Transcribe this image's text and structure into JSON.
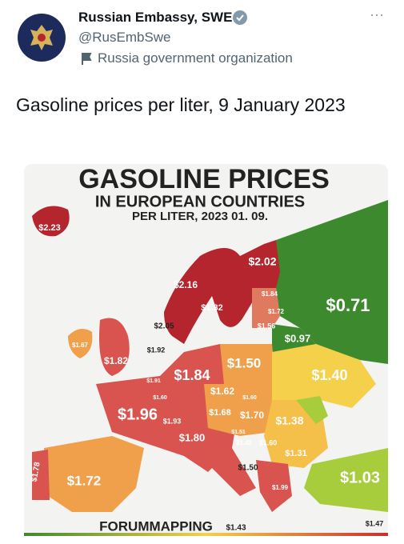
{
  "tweet": {
    "name": "Russian Embassy, SWE",
    "handle": "@RusEmbSwe",
    "label": "Russia government organization",
    "more": "···",
    "text": "Gasoline prices per liter, 9 January 2023"
  },
  "map": {
    "title": "GASOLINE PRICES",
    "subtitle": "IN EUROPEAN COUNTRIES",
    "date": "PER LITER, 2023 01. 09.",
    "source": "FORUMMAPPING",
    "labels": [
      "$2.23",
      "$2.02",
      "$2.16",
      "$1.84",
      "$1.82",
      "$1.72",
      "$0.71",
      "$2.05",
      "$1.56",
      "$0.97",
      "$1.67",
      "$1.92",
      "$1.82",
      "$1.50",
      "$1.91",
      "$1.84",
      "$1.40",
      "$1.60",
      "$1.62",
      "$1.60",
      "$1.96",
      "$1.68",
      "$1.70",
      "$1.38",
      "$1.93",
      "$1.51",
      "$1.80",
      "$1.42",
      "$1.60",
      "$1.31",
      "$1.78",
      "$1.50",
      "$1.72",
      "$1.03",
      "$1.99",
      "$1.43",
      "$1.47"
    ]
  }
}
